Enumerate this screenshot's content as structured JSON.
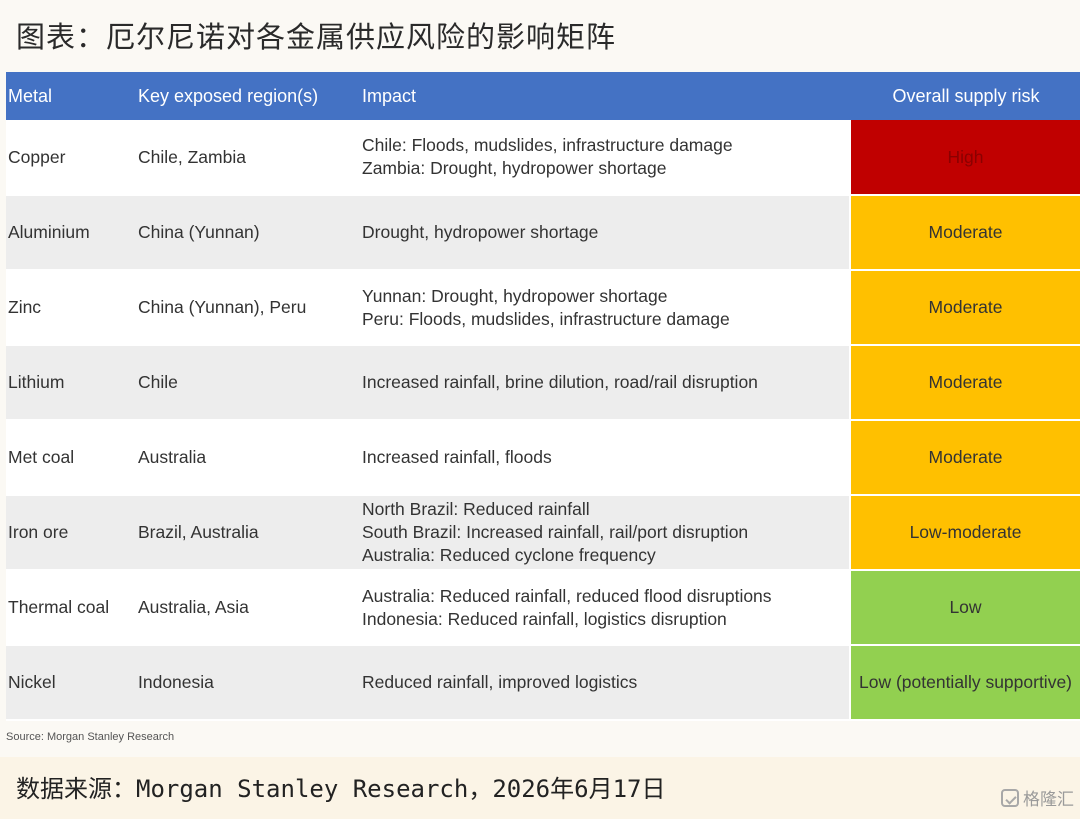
{
  "title": "图表：厄尔尼诺对各金属供应风险的影响矩阵",
  "colors": {
    "header": "#4472c4",
    "high": "#c00000",
    "moderate": "#ffc000",
    "low": "#92d050"
  },
  "table": {
    "headers": [
      "Metal",
      "Key exposed region(s)",
      "Impact",
      "Overall supply risk"
    ],
    "rows": [
      {
        "metal": "Copper",
        "regions": "Chile, Zambia",
        "impact": [
          "Chile: Floods, mudslides, infrastructure damage",
          "Zambia: Drought, hydropower shortage"
        ],
        "risk": "High",
        "risk_level": "high"
      },
      {
        "metal": "Aluminium",
        "regions": "China (Yunnan)",
        "impact": [
          "Drought, hydropower shortage"
        ],
        "risk": "Moderate",
        "risk_level": "moderate"
      },
      {
        "metal": "Zinc",
        "regions": "China (Yunnan), Peru",
        "impact": [
          "Yunnan: Drought, hydropower shortage",
          "Peru: Floods, mudslides, infrastructure damage"
        ],
        "risk": "Moderate",
        "risk_level": "moderate"
      },
      {
        "metal": "Lithium",
        "regions": "Chile",
        "impact": [
          "Increased rainfall, brine dilution, road/rail disruption"
        ],
        "risk": "Moderate",
        "risk_level": "moderate"
      },
      {
        "metal": "Met coal",
        "regions": "Australia",
        "impact": [
          "Increased rainfall, floods"
        ],
        "risk": "Moderate",
        "risk_level": "moderate"
      },
      {
        "metal": "Iron ore",
        "regions": "Brazil, Australia",
        "impact": [
          "North Brazil: Reduced rainfall",
          "South Brazil: Increased rainfall, rail/port disruption",
          "Australia: Reduced cyclone frequency"
        ],
        "risk": "Low-moderate",
        "risk_level": "moderate"
      },
      {
        "metal": "Thermal coal",
        "regions": "Australia, Asia",
        "impact": [
          "Australia: Reduced rainfall, reduced flood disruptions",
          "Indonesia: Reduced rainfall, logistics disruption"
        ],
        "risk": "Low",
        "risk_level": "low"
      },
      {
        "metal": "Nickel",
        "regions": "Indonesia",
        "impact": [
          "Reduced rainfall, improved logistics"
        ],
        "risk": "Low (potentially supportive)",
        "risk_level": "low"
      }
    ]
  },
  "source_note": "Source: Morgan Stanley Research",
  "footer": "数据来源：Morgan Stanley Research，2026年6月17日",
  "watermark": "格隆汇"
}
